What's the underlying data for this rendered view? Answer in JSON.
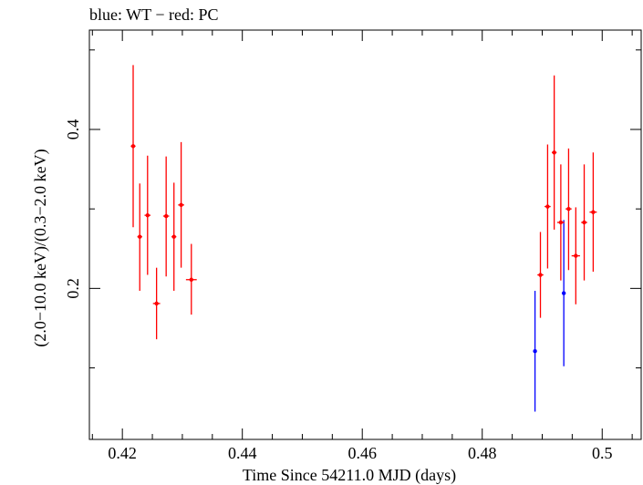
{
  "chart_data": {
    "type": "scatter",
    "title": "blue: WT − red: PC",
    "xlabel": "Time Since 54211.0 MJD (days)",
    "ylabel": "(2.0−10.0 keV)/(0.3−2.0 keV)",
    "xlim": [
      0.4145,
      0.5065
    ],
    "ylim": [
      0.01,
      0.525
    ],
    "xticks": [
      0.42,
      0.44,
      0.46,
      0.48,
      0.5
    ],
    "xtick_labels": [
      "0.42",
      "0.44",
      "0.46",
      "0.48",
      "0.5"
    ],
    "yticks": [
      0.2,
      0.4
    ],
    "ytick_labels": [
      "0.2",
      "0.4"
    ],
    "grid": false,
    "series": [
      {
        "color": "#0000ff",
        "points": [
          {
            "x": 0.4888,
            "y": 0.121,
            "xerr": 0.0001,
            "ylo": 0.045,
            "yhi": 0.197
          },
          {
            "x": 0.4936,
            "y": 0.194,
            "xerr": 0.0001,
            "ylo": 0.102,
            "yhi": 0.286
          }
        ]
      },
      {
        "color": "#ff0000",
        "points": [
          {
            "x": 0.4218,
            "y": 0.379,
            "xerr": 0.0004,
            "ylo": 0.277,
            "yhi": 0.481
          },
          {
            "x": 0.4229,
            "y": 0.265,
            "xerr": 0.0004,
            "ylo": 0.197,
            "yhi": 0.332
          },
          {
            "x": 0.4242,
            "y": 0.292,
            "xerr": 0.0005,
            "ylo": 0.217,
            "yhi": 0.367
          },
          {
            "x": 0.4257,
            "y": 0.181,
            "xerr": 0.0006,
            "ylo": 0.136,
            "yhi": 0.226
          },
          {
            "x": 0.4273,
            "y": 0.291,
            "xerr": 0.0005,
            "ylo": 0.215,
            "yhi": 0.366
          },
          {
            "x": 0.4286,
            "y": 0.265,
            "xerr": 0.0004,
            "ylo": 0.197,
            "yhi": 0.333
          },
          {
            "x": 0.4298,
            "y": 0.305,
            "xerr": 0.0005,
            "ylo": 0.226,
            "yhi": 0.384
          },
          {
            "x": 0.4315,
            "y": 0.211,
            "xerr": 0.0009,
            "ylo": 0.167,
            "yhi": 0.256
          },
          {
            "x": 0.4897,
            "y": 0.217,
            "xerr": 0.0005,
            "ylo": 0.163,
            "yhi": 0.271
          },
          {
            "x": 0.4909,
            "y": 0.303,
            "xerr": 0.0005,
            "ylo": 0.225,
            "yhi": 0.381
          },
          {
            "x": 0.492,
            "y": 0.371,
            "xerr": 0.0004,
            "ylo": 0.274,
            "yhi": 0.468
          },
          {
            "x": 0.4931,
            "y": 0.283,
            "xerr": 0.0006,
            "ylo": 0.21,
            "yhi": 0.356
          },
          {
            "x": 0.4944,
            "y": 0.3,
            "xerr": 0.0005,
            "ylo": 0.223,
            "yhi": 0.376
          },
          {
            "x": 0.4956,
            "y": 0.241,
            "xerr": 0.0007,
            "ylo": 0.18,
            "yhi": 0.302
          },
          {
            "x": 0.497,
            "y": 0.283,
            "xerr": 0.0005,
            "ylo": 0.21,
            "yhi": 0.356
          },
          {
            "x": 0.4985,
            "y": 0.296,
            "xerr": 0.0006,
            "ylo": 0.221,
            "yhi": 0.371
          }
        ]
      }
    ]
  }
}
